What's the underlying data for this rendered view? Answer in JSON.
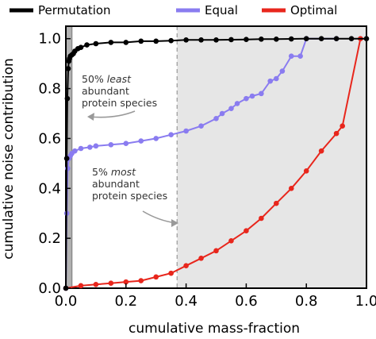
{
  "chart_data": {
    "type": "line",
    "xlabel": "cumulative mass-fraction",
    "ylabel": "cumulative noise contribution",
    "xlim": [
      0,
      1
    ],
    "ylim": [
      0,
      1.05
    ],
    "xticks": [
      "0.0",
      "0.2",
      "0.4",
      "0.6",
      "0.8",
      "1.0"
    ],
    "yticks": [
      "0.0",
      "0.2",
      "0.4",
      "0.6",
      "0.8",
      "1.0"
    ],
    "legend": {
      "placement": "top",
      "entries": [
        "Permutation",
        "Equal",
        "Optimal"
      ]
    },
    "regions": [
      {
        "label": "50% least abundant protein species",
        "x_range": [
          0,
          0.02
        ],
        "color": "#b3b3b3"
      },
      {
        "label": "5% most abundant protein species",
        "x_range": [
          0.37,
          1.0
        ],
        "color": "#e6e6e6"
      }
    ],
    "annotations": [
      {
        "lines": [
          "50% least",
          "abundant",
          "protein species"
        ],
        "emphasis": "least"
      },
      {
        "lines": [
          "5% most",
          "abundant",
          "protein species"
        ],
        "emphasis": "most"
      }
    ],
    "series": [
      {
        "name": "Permutation",
        "color": "#000000",
        "x": [
          0.0,
          0.003,
          0.005,
          0.008,
          0.01,
          0.012,
          0.015,
          0.02,
          0.025,
          0.03,
          0.04,
          0.05,
          0.07,
          0.1,
          0.15,
          0.2,
          0.25,
          0.3,
          0.35,
          0.4,
          0.45,
          0.5,
          0.55,
          0.6,
          0.65,
          0.7,
          0.75,
          0.8,
          0.85,
          0.9,
          0.95,
          1.0
        ],
        "y": [
          0.0,
          0.52,
          0.76,
          0.88,
          0.91,
          0.92,
          0.93,
          0.935,
          0.94,
          0.95,
          0.96,
          0.965,
          0.975,
          0.98,
          0.985,
          0.985,
          0.99,
          0.99,
          0.992,
          0.995,
          0.995,
          0.995,
          0.996,
          0.997,
          0.998,
          0.998,
          0.999,
          1.0,
          1.0,
          1.0,
          1.0,
          1.0
        ]
      },
      {
        "name": "Equal",
        "color": "#8a7cf0",
        "x": [
          0.0,
          0.003,
          0.006,
          0.01,
          0.015,
          0.02,
          0.03,
          0.05,
          0.08,
          0.1,
          0.15,
          0.2,
          0.25,
          0.3,
          0.35,
          0.4,
          0.45,
          0.5,
          0.52,
          0.55,
          0.57,
          0.6,
          0.62,
          0.65,
          0.68,
          0.7,
          0.72,
          0.75,
          0.78,
          0.8,
          0.9
        ],
        "y": [
          0.0,
          0.3,
          0.48,
          0.52,
          0.53,
          0.54,
          0.55,
          0.56,
          0.565,
          0.57,
          0.575,
          0.58,
          0.59,
          0.6,
          0.615,
          0.63,
          0.65,
          0.68,
          0.7,
          0.72,
          0.74,
          0.76,
          0.77,
          0.78,
          0.83,
          0.84,
          0.87,
          0.93,
          0.93,
          1.0,
          1.0
        ]
      },
      {
        "name": "Optimal",
        "color": "#e8261c",
        "x": [
          0.0,
          0.05,
          0.1,
          0.15,
          0.2,
          0.25,
          0.3,
          0.35,
          0.4,
          0.45,
          0.5,
          0.55,
          0.6,
          0.65,
          0.7,
          0.75,
          0.8,
          0.85,
          0.9,
          0.92,
          0.98
        ],
        "y": [
          0.0,
          0.01,
          0.015,
          0.02,
          0.025,
          0.03,
          0.045,
          0.06,
          0.09,
          0.12,
          0.15,
          0.19,
          0.23,
          0.28,
          0.34,
          0.4,
          0.47,
          0.55,
          0.62,
          0.65,
          1.0
        ]
      }
    ]
  }
}
